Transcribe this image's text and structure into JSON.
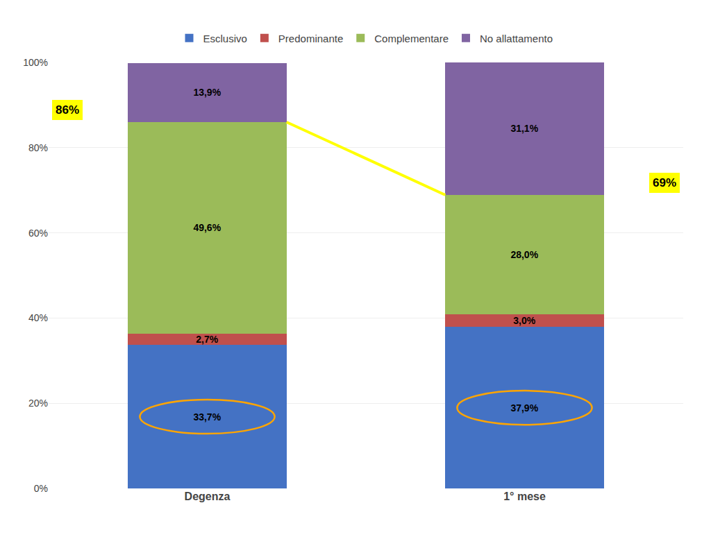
{
  "chart_data": {
    "type": "bar",
    "stacked": true,
    "categories": [
      "Degenza",
      "1° mese"
    ],
    "series": [
      {
        "name": "Esclusivo",
        "color": "#4472C4",
        "values": [
          33.7,
          37.9
        ],
        "value_labels": [
          "33,7%",
          "37,9%"
        ]
      },
      {
        "name": "Predominante",
        "color": "#C0504D",
        "values": [
          2.7,
          3.0
        ],
        "value_labels": [
          "2,7%",
          "3,0%"
        ]
      },
      {
        "name": "Complementare",
        "color": "#9BBB59",
        "values": [
          49.6,
          28.0
        ],
        "value_labels": [
          "49,6%",
          "28,0%"
        ]
      },
      {
        "name": "No allattamento",
        "color": "#8064A2",
        "values": [
          13.9,
          31.1
        ],
        "value_labels": [
          "13,9%",
          "31,1%"
        ]
      }
    ],
    "data_labels": true,
    "annotations": [
      {
        "text": "86%",
        "y": 86.0
      },
      {
        "text": "69%",
        "y": 68.9
      }
    ],
    "ylim": [
      0,
      100
    ],
    "yticks": [
      {
        "value": 0,
        "label": "0%"
      },
      {
        "value": 20,
        "label": "20%"
      },
      {
        "value": 40,
        "label": "40%"
      },
      {
        "value": 60,
        "label": "60%"
      },
      {
        "value": 80,
        "label": "80%"
      },
      {
        "value": 100,
        "label": "100%"
      }
    ],
    "grid": true,
    "legend": "top"
  }
}
